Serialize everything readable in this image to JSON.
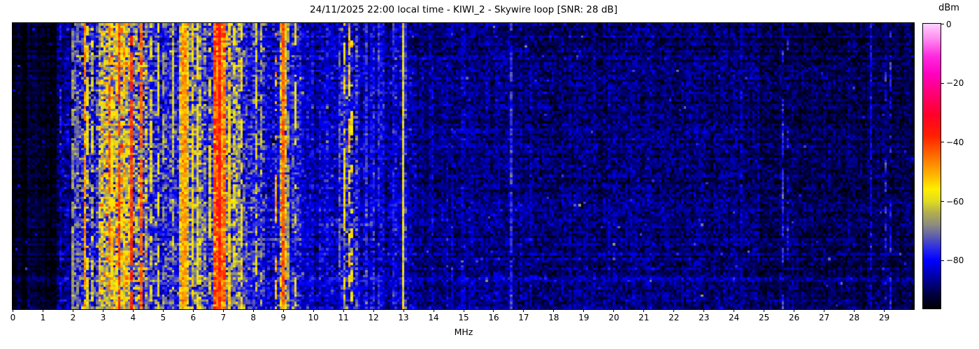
{
  "chart_data": {
    "type": "heatmap",
    "title": "24/11/2025 22:00 local time - KIWI_2 - Skywire loop [SNR: 28 dB]",
    "xlabel": "MHz",
    "x_range": [
      0,
      30
    ],
    "x_ticks": [
      "0",
      "1",
      "2",
      "3",
      "4",
      "5",
      "6",
      "7",
      "8",
      "9",
      "10",
      "11",
      "12",
      "13",
      "14",
      "15",
      "16",
      "17",
      "18",
      "19",
      "20",
      "21",
      "22",
      "23",
      "24",
      "25",
      "26",
      "27",
      "28",
      "29"
    ],
    "y_ticks": [],
    "legend_position": "none",
    "grid": false,
    "colorbar": {
      "label": "dBm",
      "ticks": [
        {
          "value": 0,
          "label": "0"
        },
        {
          "value": -20,
          "label": "−20"
        },
        {
          "value": -40,
          "label": "−40"
        },
        {
          "value": -60,
          "label": "−60"
        },
        {
          "value": -80,
          "label": "−80"
        }
      ],
      "range": [
        -96.3,
        0
      ]
    },
    "palette": [
      [
        0,
        "#ffd2ff"
      ],
      [
        -5,
        "#ff8cf0"
      ],
      [
        -11,
        "#ff2ae0"
      ],
      [
        -17,
        "#ff00c0"
      ],
      [
        -24,
        "#ff0070"
      ],
      [
        -31,
        "#ff0028"
      ],
      [
        -38,
        "#ff2000"
      ],
      [
        -45,
        "#ff7000"
      ],
      [
        -51,
        "#ffb400"
      ],
      [
        -56,
        "#ffee00"
      ],
      [
        -60,
        "#e0dc20"
      ],
      [
        -64,
        "#b0ac50"
      ],
      [
        -68,
        "#8c8c80"
      ],
      [
        -72,
        "#5c5cb0"
      ],
      [
        -76,
        "#2a2ae8"
      ],
      [
        -80,
        "#0000ff"
      ],
      [
        -86,
        "#0000a0"
      ],
      [
        -91,
        "#000048"
      ],
      [
        -96.3,
        "#000000"
      ]
    ],
    "noise_floor_bands_dbm": [
      {
        "f0": 0.0,
        "f1": 1.45,
        "mean": -94,
        "jitter": 2
      },
      {
        "f0": 1.45,
        "f1": 2.05,
        "mean": -89,
        "jitter": 4
      },
      {
        "f0": 2.05,
        "f1": 2.85,
        "mean": -79,
        "jitter": 7
      },
      {
        "f0": 2.85,
        "f1": 3.95,
        "mean": -63,
        "jitter": 9
      },
      {
        "f0": 3.95,
        "f1": 4.45,
        "mean": -70,
        "jitter": 9
      },
      {
        "f0": 4.45,
        "f1": 5.55,
        "mean": -78,
        "jitter": 6
      },
      {
        "f0": 5.55,
        "f1": 5.85,
        "mean": -60,
        "jitter": 7
      },
      {
        "f0": 5.85,
        "f1": 6.45,
        "mean": -72,
        "jitter": 7
      },
      {
        "f0": 6.45,
        "f1": 6.72,
        "mean": -77,
        "jitter": 6
      },
      {
        "f0": 6.72,
        "f1": 7.08,
        "mean": -45,
        "jitter": 6
      },
      {
        "f0": 7.08,
        "f1": 7.6,
        "mean": -71,
        "jitter": 7
      },
      {
        "f0": 7.6,
        "f1": 8.4,
        "mean": -77,
        "jitter": 6
      },
      {
        "f0": 8.4,
        "f1": 8.9,
        "mean": -81,
        "jitter": 5
      },
      {
        "f0": 8.9,
        "f1": 9.1,
        "mean": -60,
        "jitter": 9
      },
      {
        "f0": 9.1,
        "f1": 9.6,
        "mean": -79,
        "jitter": 5
      },
      {
        "f0": 9.6,
        "f1": 10.9,
        "mean": -83,
        "jitter": 4
      },
      {
        "f0": 10.9,
        "f1": 11.5,
        "mean": -79,
        "jitter": 6
      },
      {
        "f0": 11.5,
        "f1": 12.4,
        "mean": -83,
        "jitter": 4
      },
      {
        "f0": 12.4,
        "f1": 13.4,
        "mean": -85,
        "jitter": 4
      },
      {
        "f0": 13.4,
        "f1": 16.3,
        "mean": -87.5,
        "jitter": 3.5
      },
      {
        "f0": 16.3,
        "f1": 24.9,
        "mean": -88.5,
        "jitter": 3.5
      },
      {
        "f0": 24.9,
        "f1": 30.01,
        "mean": -90.5,
        "jitter": 3
      }
    ],
    "signal_lines": [
      {
        "f": 1.62,
        "w": 0.05,
        "db": -79,
        "p": 0.55
      },
      {
        "f": 1.8,
        "w": 0.05,
        "db": -81,
        "p": 0.5
      },
      {
        "f": 2.0,
        "w": 0.05,
        "db": -67,
        "p": 0.85
      },
      {
        "f": 2.17,
        "w": 0.04,
        "db": -72,
        "p": 0.6
      },
      {
        "f": 2.38,
        "w": 0.05,
        "db": -49,
        "p": 0.8
      },
      {
        "f": 2.5,
        "w": 0.05,
        "db": -58,
        "p": 0.75
      },
      {
        "f": 2.65,
        "w": 0.04,
        "db": -62,
        "p": 0.6
      },
      {
        "f": 3.2,
        "w": 0.05,
        "db": -44,
        "p": 0.6
      },
      {
        "f": 3.33,
        "w": 0.04,
        "db": -55,
        "p": 0.7
      },
      {
        "f": 3.54,
        "w": 0.05,
        "db": -40,
        "p": 0.85
      },
      {
        "f": 3.74,
        "w": 0.04,
        "db": -52,
        "p": 0.6
      },
      {
        "f": 3.95,
        "w": 0.05,
        "db": -40,
        "p": 0.9
      },
      {
        "f": 4.27,
        "w": 0.05,
        "db": -43,
        "p": 0.8
      },
      {
        "f": 4.6,
        "w": 0.04,
        "db": -60,
        "p": 0.45
      },
      {
        "f": 4.85,
        "w": 0.04,
        "db": -58,
        "p": 0.6
      },
      {
        "f": 5.0,
        "w": 0.04,
        "db": -66,
        "p": 0.65
      },
      {
        "f": 5.35,
        "w": 0.04,
        "db": -62,
        "p": 0.5
      },
      {
        "f": 5.7,
        "w": 0.12,
        "db": -50,
        "p": 0.95
      },
      {
        "f": 6.0,
        "w": 0.05,
        "db": -56,
        "p": 0.8
      },
      {
        "f": 6.18,
        "w": 0.04,
        "db": -58,
        "p": 0.7
      },
      {
        "f": 6.6,
        "w": 0.04,
        "db": -60,
        "p": 0.5
      },
      {
        "f": 6.9,
        "w": 0.14,
        "db": -38,
        "p": 1.0
      },
      {
        "f": 7.2,
        "w": 0.05,
        "db": -56,
        "p": 0.7
      },
      {
        "f": 7.38,
        "w": 0.04,
        "db": -60,
        "p": 0.6
      },
      {
        "f": 7.62,
        "w": 0.04,
        "db": -56,
        "p": 0.7
      },
      {
        "f": 8.1,
        "w": 0.04,
        "db": -60,
        "p": 0.5
      },
      {
        "f": 8.27,
        "w": 0.04,
        "db": -64,
        "p": 0.45
      },
      {
        "f": 8.8,
        "w": 0.04,
        "db": -50,
        "p": 0.4
      },
      {
        "f": 8.97,
        "w": 0.08,
        "db": -44,
        "p": 0.95
      },
      {
        "f": 9.17,
        "w": 0.04,
        "db": -66,
        "p": 0.8
      },
      {
        "f": 9.4,
        "w": 0.04,
        "db": -58,
        "p": 0.35
      },
      {
        "f": 10.85,
        "w": 0.04,
        "db": -72,
        "p": 0.5
      },
      {
        "f": 11.05,
        "w": 0.04,
        "db": -56,
        "p": 0.6
      },
      {
        "f": 11.2,
        "w": 0.04,
        "db": -53,
        "p": 0.6
      },
      {
        "f": 11.33,
        "w": 0.04,
        "db": -58,
        "p": 0.5
      },
      {
        "f": 11.8,
        "w": 0.04,
        "db": -76,
        "p": 0.5
      },
      {
        "f": 12.2,
        "w": 0.04,
        "db": -76,
        "p": 0.5
      },
      {
        "f": 12.7,
        "w": 0.04,
        "db": -78,
        "p": 0.6
      },
      {
        "f": 13.0,
        "w": 0.05,
        "db": -58,
        "p": 0.97
      },
      {
        "f": 13.12,
        "w": 0.04,
        "db": -76,
        "p": 0.6
      },
      {
        "f": 14.0,
        "w": 0.04,
        "db": -82,
        "p": 0.5
      },
      {
        "f": 14.6,
        "w": 0.04,
        "db": -82,
        "p": 0.45
      },
      {
        "f": 15.0,
        "w": 0.04,
        "db": -83,
        "p": 0.4
      },
      {
        "f": 16.62,
        "w": 0.05,
        "db": -77,
        "p": 0.9
      },
      {
        "f": 20.0,
        "w": 0.04,
        "db": -85,
        "p": 0.3
      },
      {
        "f": 25.62,
        "w": 0.05,
        "db": -77,
        "p": 0.55
      },
      {
        "f": 25.8,
        "w": 0.04,
        "db": -80,
        "p": 0.45
      },
      {
        "f": 28.6,
        "w": 0.04,
        "db": -82,
        "p": 0.8
      },
      {
        "f": 29.05,
        "w": 0.04,
        "db": -77,
        "p": 0.5
      },
      {
        "f": 29.2,
        "w": 0.04,
        "db": -79,
        "p": 0.45
      }
    ]
  }
}
